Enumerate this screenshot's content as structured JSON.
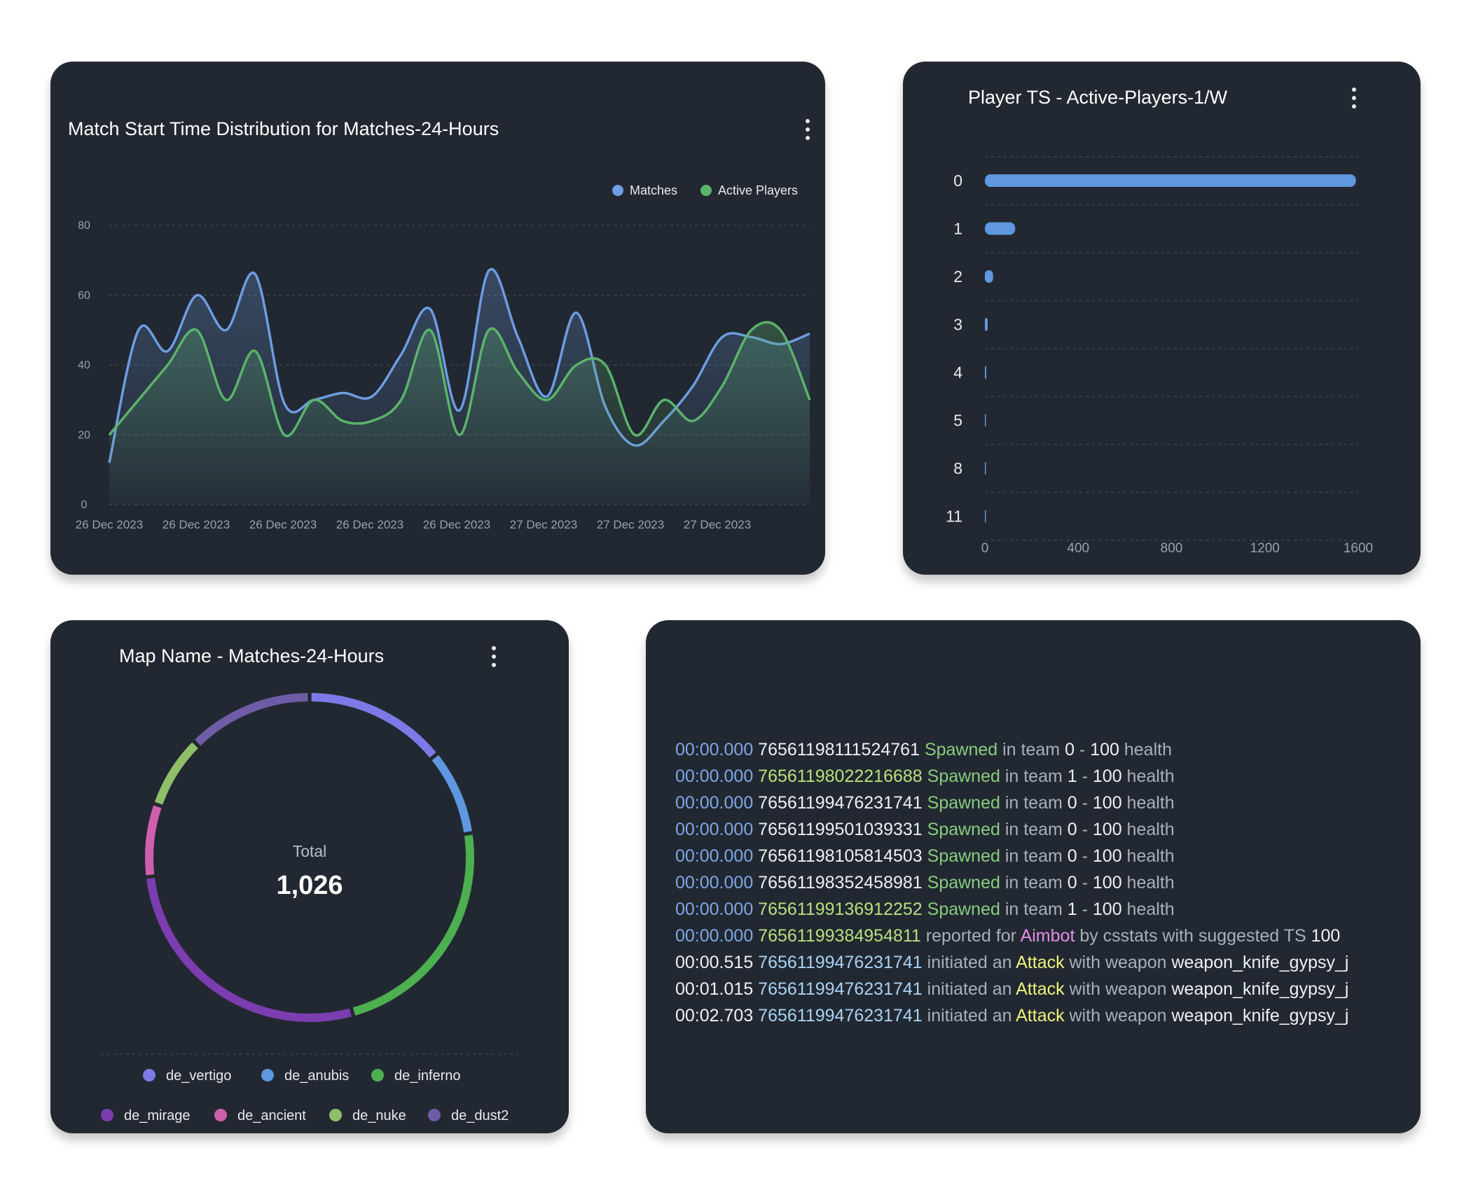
{
  "line_card": {
    "title": "Match Start Time Distribution for Matches-24-Hours",
    "colors": {
      "matches": "#6d9de2",
      "active_players": "#5bb36b",
      "grid": "#3d4550",
      "tick": "#9aa1ab"
    }
  },
  "bar_card": {
    "title": "Player TS - Active-Players-1/W",
    "bar_color": "#5f97e0"
  },
  "pie_card": {
    "title": "Map Name - Matches-24-Hours",
    "center_label": "Total",
    "center_value": "1,026"
  },
  "log_card": {
    "lines": [
      [
        {
          "t": "00:00.000",
          "c": "c-blue"
        },
        {
          "t": " "
        },
        {
          "t": "76561198111524761",
          "c": "c-white"
        },
        {
          "t": " "
        },
        {
          "t": "Spawned",
          "c": "c-green"
        },
        {
          "t": " in team ",
          "c": "c-gray"
        },
        {
          "t": "0",
          "c": "c-white"
        },
        {
          "t": " - ",
          "c": "c-gray"
        },
        {
          "t": "100",
          "c": "c-white"
        },
        {
          "t": " health",
          "c": "c-gray"
        }
      ],
      [
        {
          "t": "00:00.000",
          "c": "c-blue"
        },
        {
          "t": " "
        },
        {
          "t": "76561198022216688",
          "c": "c-lime"
        },
        {
          "t": " "
        },
        {
          "t": "Spawned",
          "c": "c-green"
        },
        {
          "t": " in team ",
          "c": "c-gray"
        },
        {
          "t": "1",
          "c": "c-white"
        },
        {
          "t": " - ",
          "c": "c-gray"
        },
        {
          "t": "100",
          "c": "c-white"
        },
        {
          "t": " health",
          "c": "c-gray"
        }
      ],
      [
        {
          "t": "00:00.000",
          "c": "c-blue"
        },
        {
          "t": " "
        },
        {
          "t": "76561199476231741",
          "c": "c-white"
        },
        {
          "t": " "
        },
        {
          "t": "Spawned",
          "c": "c-green"
        },
        {
          "t": " in team ",
          "c": "c-gray"
        },
        {
          "t": "0",
          "c": "c-white"
        },
        {
          "t": " - ",
          "c": "c-gray"
        },
        {
          "t": "100",
          "c": "c-white"
        },
        {
          "t": " health",
          "c": "c-gray"
        }
      ],
      [
        {
          "t": "00:00.000",
          "c": "c-blue"
        },
        {
          "t": " "
        },
        {
          "t": "76561199501039331",
          "c": "c-white"
        },
        {
          "t": " "
        },
        {
          "t": "Spawned",
          "c": "c-green"
        },
        {
          "t": " in team ",
          "c": "c-gray"
        },
        {
          "t": "0",
          "c": "c-white"
        },
        {
          "t": " - ",
          "c": "c-gray"
        },
        {
          "t": "100",
          "c": "c-white"
        },
        {
          "t": " health",
          "c": "c-gray"
        }
      ],
      [
        {
          "t": "00:00.000",
          "c": "c-blue"
        },
        {
          "t": " "
        },
        {
          "t": "76561198105814503",
          "c": "c-white"
        },
        {
          "t": " "
        },
        {
          "t": "Spawned",
          "c": "c-green"
        },
        {
          "t": " in team ",
          "c": "c-gray"
        },
        {
          "t": "0",
          "c": "c-white"
        },
        {
          "t": " - ",
          "c": "c-gray"
        },
        {
          "t": "100",
          "c": "c-white"
        },
        {
          "t": " health",
          "c": "c-gray"
        }
      ],
      [
        {
          "t": "00:00.000",
          "c": "c-blue"
        },
        {
          "t": " "
        },
        {
          "t": "76561198352458981",
          "c": "c-white"
        },
        {
          "t": " "
        },
        {
          "t": "Spawned",
          "c": "c-green"
        },
        {
          "t": " in team ",
          "c": "c-gray"
        },
        {
          "t": "0",
          "c": "c-white"
        },
        {
          "t": " - ",
          "c": "c-gray"
        },
        {
          "t": "100",
          "c": "c-white"
        },
        {
          "t": " health",
          "c": "c-gray"
        }
      ],
      [
        {
          "t": "00:00.000",
          "c": "c-blue"
        },
        {
          "t": " "
        },
        {
          "t": "76561199136912252",
          "c": "c-lime"
        },
        {
          "t": " "
        },
        {
          "t": "Spawned",
          "c": "c-green"
        },
        {
          "t": " in team ",
          "c": "c-gray"
        },
        {
          "t": "1",
          "c": "c-white"
        },
        {
          "t": " - ",
          "c": "c-gray"
        },
        {
          "t": "100",
          "c": "c-white"
        },
        {
          "t": " health",
          "c": "c-gray"
        }
      ],
      [
        {
          "t": "00:00.000",
          "c": "c-blue"
        },
        {
          "t": " "
        },
        {
          "t": "76561199384954811",
          "c": "c-lime"
        },
        {
          "t": " reported for ",
          "c": "c-gray"
        },
        {
          "t": "Aimbot",
          "c": "c-pink"
        },
        {
          "t": " by csstats with suggested TS ",
          "c": "c-gray"
        },
        {
          "t": "100",
          "c": "c-white"
        }
      ],
      [
        {
          "t": "00:00.515",
          "c": "c-white"
        },
        {
          "t": " "
        },
        {
          "t": "76561199476231741",
          "c": "c-lightblue"
        },
        {
          "t": " initiated an ",
          "c": "c-gray"
        },
        {
          "t": "Attack",
          "c": "c-yellow"
        },
        {
          "t": " with weapon ",
          "c": "c-gray"
        },
        {
          "t": "weapon_knife_gypsy_j",
          "c": "c-white"
        }
      ],
      [
        {
          "t": "00:01.015",
          "c": "c-white"
        },
        {
          "t": " "
        },
        {
          "t": "76561199476231741",
          "c": "c-lightblue"
        },
        {
          "t": " initiated an ",
          "c": "c-gray"
        },
        {
          "t": "Attack",
          "c": "c-yellow"
        },
        {
          "t": " with weapon ",
          "c": "c-gray"
        },
        {
          "t": "weapon_knife_gypsy_j",
          "c": "c-white"
        }
      ],
      [
        {
          "t": "00:02.703",
          "c": "c-white"
        },
        {
          "t": " "
        },
        {
          "t": "76561199476231741",
          "c": "c-lightblue"
        },
        {
          "t": " initiated an ",
          "c": "c-gray"
        },
        {
          "t": "Attack",
          "c": "c-yellow"
        },
        {
          "t": " with weapon ",
          "c": "c-gray"
        },
        {
          "t": "weapon_knife_gypsy_j",
          "c": "c-white"
        }
      ]
    ]
  },
  "chart_data": [
    {
      "type": "line",
      "title": "Match Start Time Distribution for Matches-24-Hours",
      "x_tick_labels": [
        "26 Dec 2023",
        "26 Dec 2023",
        "26 Dec 2023",
        "26 Dec 2023",
        "26 Dec 2023",
        "27 Dec 2023",
        "27 Dec 2023",
        "27 Dec 2023"
      ],
      "y_ticks": [
        0,
        20,
        40,
        60,
        80
      ],
      "ylim": [
        0,
        80
      ],
      "grid": true,
      "legend_position": "top-right",
      "series": [
        {
          "name": "Matches",
          "color": "#6d9de2",
          "values": [
            12,
            50,
            44,
            60,
            50,
            66,
            29,
            30,
            32,
            31,
            43,
            56,
            27,
            67,
            48,
            31,
            55,
            28,
            17,
            24,
            34,
            48,
            48,
            46,
            49
          ]
        },
        {
          "name": "Active Players",
          "color": "#5bb36b",
          "values": [
            20,
            30,
            40,
            50,
            30,
            44,
            20,
            30,
            24,
            24,
            30,
            50,
            20,
            50,
            38,
            30,
            40,
            40,
            20,
            30,
            24,
            34,
            50,
            50,
            30
          ]
        }
      ]
    },
    {
      "type": "bar",
      "title": "Player TS - Active-Players-1/W",
      "orientation": "horizontal",
      "categories": [
        "0",
        "1",
        "2",
        "3",
        "4",
        "5",
        "8",
        "11"
      ],
      "values": [
        1590,
        130,
        35,
        12,
        6,
        4,
        2,
        2
      ],
      "x_ticks": [
        0,
        400,
        800,
        1200,
        1600
      ],
      "xlim": [
        0,
        1600
      ],
      "grid": true
    },
    {
      "type": "pie",
      "variant": "donut",
      "title": "Map Name - Matches-24-Hours",
      "total_label": "Total",
      "total": "1,026",
      "legend_position": "bottom",
      "slices": [
        {
          "name": "de_vertigo",
          "value": 145,
          "color": "#7d7ae8"
        },
        {
          "name": "de_anubis",
          "value": 87,
          "color": "#5f97e0"
        },
        {
          "name": "de_inferno",
          "value": 237,
          "color": "#4caf50"
        },
        {
          "name": "de_mirage",
          "value": 281,
          "color": "#7b3db0"
        },
        {
          "name": "de_ancient",
          "value": 74,
          "color": "#cf5fad"
        },
        {
          "name": "de_nuke",
          "value": 74,
          "color": "#8fbf6a"
        },
        {
          "name": "de_dust2",
          "value": 128,
          "color": "#6f5ca6"
        }
      ]
    }
  ]
}
